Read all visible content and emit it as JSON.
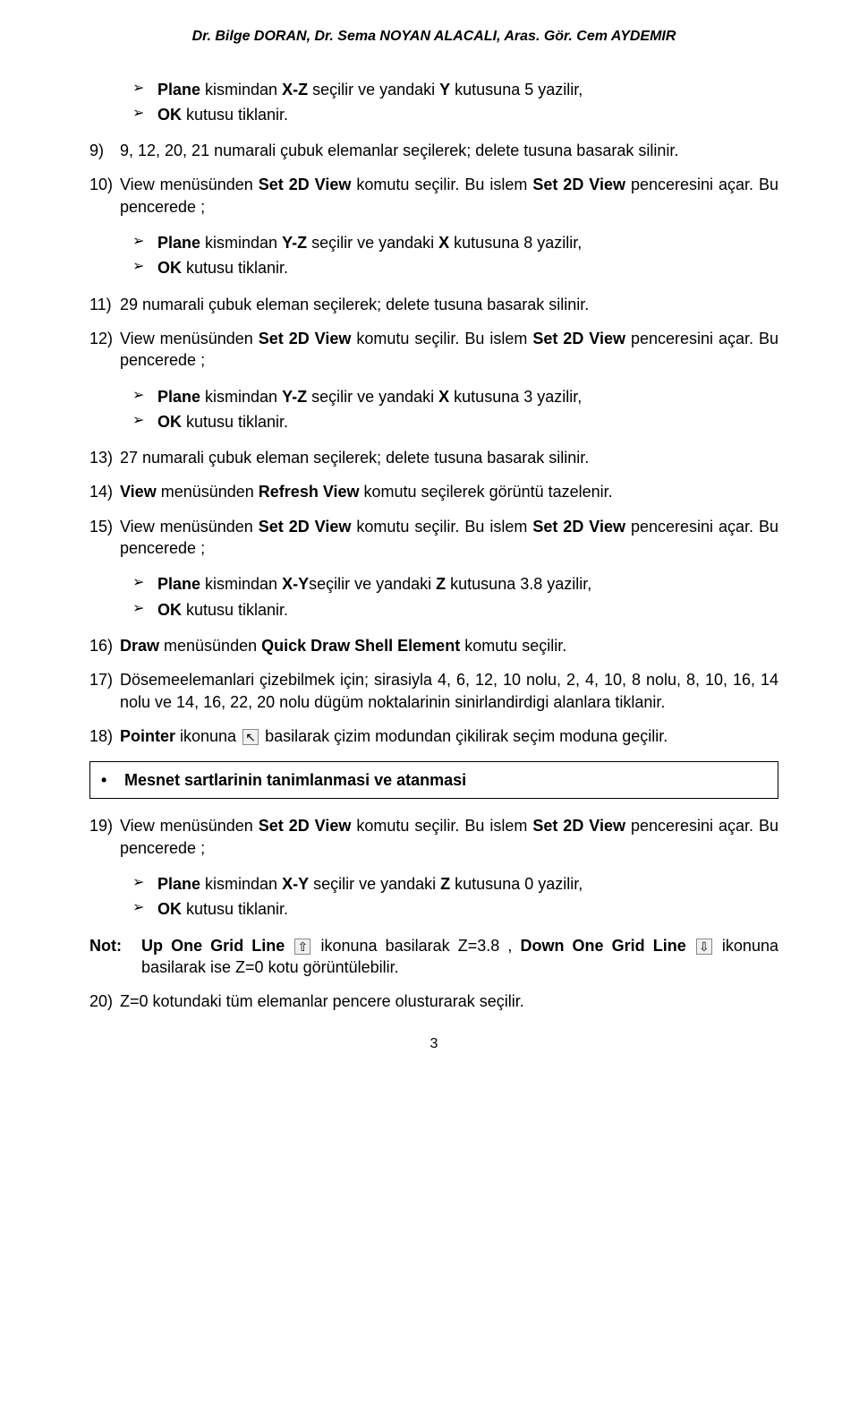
{
  "header": "Dr. Bilge DORAN, Dr. Sema NOYAN ALACALI, Aras. Gör. Cem AYDEMIR",
  "bg1": {
    "a": "Plane kismindan X-Z seçilir ve yandaki Y kutusuna 5 yazilir,",
    "b": "OK kutusu tiklanir."
  },
  "s9_num": "9)",
  "s9": "9, 12, 20, 21 numarali çubuk elemanlar seçilerek; delete tusuna basarak silinir.",
  "s10_num": "10)",
  "s10_a": "View menüsünden ",
  "s10_b": "Set 2D View",
  "s10_c": " komutu seçilir. Bu islem    ",
  "s10_d": "Set 2D View",
  "s10_e": " penceresini açar. Bu pencerede ;",
  "bg2": {
    "a1": "Plane kismindan Y-Z seçilir ve yandaki X kutusuna 8 yazilir,",
    "b": "OK kutusu tiklanir."
  },
  "s11_num": "11)",
  "s11": "29 numarali çubuk eleman seçilerek; delete tusuna basarak silinir.",
  "s12_num": "12)",
  "s12_a": "View menüsünden ",
  "s12_b": "Set 2D View",
  "s12_c": " komutu seçilir. Bu islem    ",
  "s12_d": "Set 2D View",
  "s12_e": " penceresini açar. Bu pencerede ;",
  "bg3": {
    "a": "Plane kismindan Y-Z seçilir ve yandaki X kutusuna 3 yazilir,",
    "b": "OK kutusu tiklanir."
  },
  "s13_num": "13)",
  "s13": "27 numarali çubuk eleman seçilerek; delete tusuna basarak silinir.",
  "s14_num": "14)",
  "s14_a": "View",
  "s14_b": " menüsünden ",
  "s14_c": "Refresh View",
  "s14_d": "  komutu seçilerek görüntü tazelenir.",
  "s15_num": "15)",
  "s15_a": "View menüsünden ",
  "s15_b": "Set 2D View",
  "s15_c": " komutu seçilir. Bu islem    ",
  "s15_d": "Set 2D View",
  "s15_e": " penceresini açar. Bu pencerede ;",
  "bg4": {
    "a": "Plane kismindan X-Yseçilir ve yandaki Z kutusuna 3.8 yazilir,",
    "b": "OK kutusu tiklanir."
  },
  "s16_num": "16)",
  "s16_a": "Draw",
  "s16_b": " menüsünden ",
  "s16_c": "Quick Draw Shell Element",
  "s16_d": " komutu seçilir.",
  "s17_num": "17)",
  "s17": "Dösemeelemanlari çizebilmek için; sirasiyla 4, 6, 12, 10 nolu, 2, 4, 10, 8 nolu, 8, 10, 16, 14 nolu  ve 14, 16, 22, 20 nolu dügüm noktalarinin sinirlandirdigi alanlara tiklanir.",
  "s18_num": "18)",
  "s18_a": "Pointer",
  "s18_b": " ikonuna ",
  "s18_c": " basilarak çizim modundan çikilirak seçim moduna geçilir.",
  "box_title": "Mesnet sartlarinin tanimlanmasi ve atanmasi",
  "s19_num": "19)",
  "s19_a": "View menüsünden ",
  "s19_b": "Set 2D View",
  "s19_c": " komutu seçilir. Bu islem    ",
  "s19_d": "Set 2D View",
  "s19_e": " penceresini açar. Bu pencerede ;",
  "bg5": {
    "a": "Plane kismindan X-Y seçilir ve yandaki Z kutusuna 0 yazilir,",
    "b": "OK kutusu tiklanir."
  },
  "note_label": "Not:",
  "note_a": "Up One Grid Line",
  "note_b": "   ikonuna basilarak Z=3.8 ,  ",
  "note_c": "Down One Grid Line",
  "note_d": " ikonuna basilarak ise Z=0 kotu görüntülebilir.",
  "s20_num": "20)",
  "s20": "Z=0 kotundaki tüm elemanlar pencere olusturarak seçilir.",
  "pagenum": "3",
  "colors": {
    "text": "#000000",
    "bg": "#ffffff",
    "border": "#000000",
    "icon_bg": "#f0f0f0",
    "icon_border": "#888888"
  },
  "fontsize": {
    "body": 18,
    "header": 16,
    "pagenum": 16
  }
}
